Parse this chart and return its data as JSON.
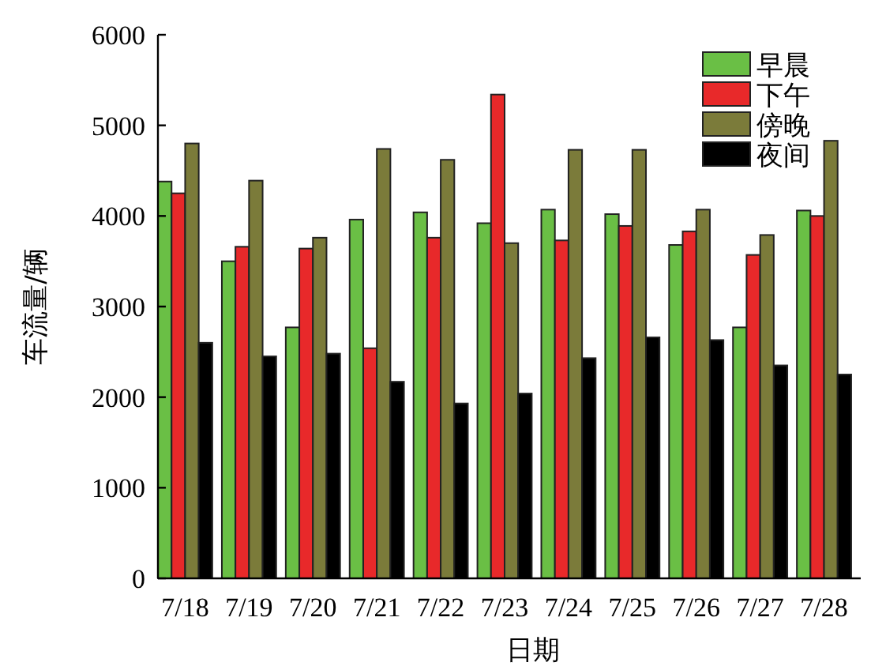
{
  "chart_data": {
    "type": "bar",
    "xlabel": "日期",
    "ylabel": "车流量/辆",
    "categories": [
      "7/18",
      "7/19",
      "7/20",
      "7/21",
      "7/22",
      "7/23",
      "7/24",
      "7/25",
      "7/26",
      "7/27",
      "7/28"
    ],
    "series": [
      {
        "name": "早晨",
        "color": "#6abf45",
        "values": [
          4380,
          3500,
          2770,
          3960,
          4040,
          3920,
          4070,
          4020,
          3680,
          2770,
          4060
        ]
      },
      {
        "name": "下午",
        "color": "#e8292a",
        "values": [
          4250,
          3660,
          3640,
          2540,
          3760,
          5340,
          3730,
          3890,
          3830,
          3570,
          4000
        ]
      },
      {
        "name": "傍晚",
        "color": "#7b7b3a",
        "values": [
          4800,
          4390,
          3760,
          4740,
          4620,
          3700,
          4730,
          4730,
          4070,
          3790,
          4830
        ]
      },
      {
        "name": "夜间",
        "color": "#000000",
        "values": [
          2600,
          2450,
          2480,
          2170,
          1930,
          2040,
          2430,
          2660,
          2630,
          2350,
          2250
        ]
      }
    ],
    "ylim": [
      0,
      6000
    ],
    "yticks": [
      0,
      1000,
      2000,
      3000,
      4000,
      5000,
      6000
    ],
    "legend": "top right",
    "grid": false
  }
}
